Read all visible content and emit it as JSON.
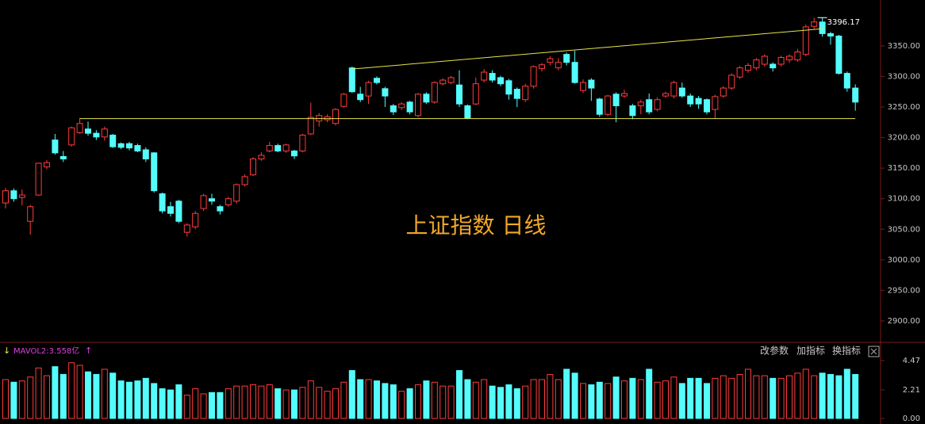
{
  "chart_data": [
    {
      "type": "candlestick",
      "title": "上证指数 日线",
      "open": [
        3093,
        3113,
        3102,
        3063,
        3106,
        3152,
        3196,
        3169,
        3188,
        3208,
        3214,
        3207,
        3201,
        3204,
        3190,
        3190,
        3187,
        3180,
        3175,
        3108,
        3087,
        3096,
        3045,
        3054,
        3084,
        3100,
        3087,
        3090,
        3096,
        3123,
        3139,
        3165,
        3178,
        3187,
        3178,
        3178,
        3178,
        3206,
        3227,
        3229,
        3223,
        3251,
        3314,
        3271,
        3268,
        3297,
        3280,
        3252,
        3249,
        3258,
        3236,
        3271,
        3258,
        3288,
        3290,
        3286,
        3252,
        3255,
        3294,
        3305,
        3298,
        3293,
        3279,
        3262,
        3284,
        3313,
        3323,
        3314,
        3336,
        3323,
        3277,
        3294,
        3263,
        3238,
        3271,
        3268,
        3252,
        3252,
        3262,
        3246,
        3268,
        3268,
        3281,
        3268,
        3264,
        3262,
        3246,
        3268,
        3281,
        3299,
        3310,
        3314,
        3320,
        3320,
        3320,
        3327,
        3327,
        3336,
        3382,
        3389,
        3370,
        3366,
        3305,
        3281
      ],
      "high": [
        3118,
        3117,
        3115,
        3090,
        3159,
        3163,
        3206,
        3178,
        3218,
        3232,
        3226,
        3212,
        3218,
        3206,
        3192,
        3193,
        3190,
        3184,
        3176,
        3110,
        3095,
        3098,
        3060,
        3080,
        3108,
        3108,
        3090,
        3103,
        3125,
        3140,
        3168,
        3176,
        3193,
        3190,
        3190,
        3180,
        3206,
        3257,
        3240,
        3238,
        3248,
        3273,
        3316,
        3283,
        3293,
        3300,
        3283,
        3255,
        3258,
        3260,
        3273,
        3274,
        3292,
        3297,
        3301,
        3310,
        3254,
        3298,
        3312,
        3310,
        3301,
        3296,
        3282,
        3288,
        3318,
        3322,
        3333,
        3330,
        3339,
        3342,
        3295,
        3297,
        3265,
        3270,
        3274,
        3278,
        3255,
        3262,
        3272,
        3266,
        3275,
        3293,
        3290,
        3272,
        3268,
        3264,
        3270,
        3284,
        3305,
        3317,
        3322,
        3330,
        3336,
        3323,
        3334,
        3336,
        3345,
        3385,
        3396,
        3396.17,
        3373,
        3368,
        3308,
        3287
      ],
      "low": [
        3084,
        3095,
        3089,
        3041,
        3105,
        3148,
        3172,
        3160,
        3185,
        3206,
        3203,
        3196,
        3195,
        3183,
        3181,
        3179,
        3176,
        3160,
        3110,
        3076,
        3071,
        3060,
        3038,
        3050,
        3080,
        3090,
        3074,
        3087,
        3092,
        3120,
        3137,
        3162,
        3176,
        3176,
        3175,
        3165,
        3176,
        3204,
        3218,
        3225,
        3220,
        3249,
        3273,
        3258,
        3255,
        3287,
        3250,
        3237,
        3245,
        3238,
        3233,
        3255,
        3255,
        3285,
        3287,
        3250,
        3230,
        3253,
        3290,
        3290,
        3284,
        3262,
        3250,
        3258,
        3280,
        3308,
        3318,
        3310,
        3318,
        3288,
        3273,
        3260,
        3234,
        3235,
        3225,
        3265,
        3230,
        3238,
        3238,
        3243,
        3265,
        3264,
        3265,
        3250,
        3247,
        3238,
        3231,
        3265,
        3278,
        3296,
        3306,
        3310,
        3316,
        3308,
        3316,
        3322,
        3324,
        3333,
        3378,
        3365,
        3352,
        3303,
        3275,
        3244
      ],
      "close": [
        3113,
        3100,
        3106,
        3087,
        3158,
        3159,
        3175,
        3165,
        3216,
        3223,
        3207,
        3201,
        3214,
        3185,
        3184,
        3183,
        3178,
        3165,
        3113,
        3080,
        3076,
        3063,
        3057,
        3076,
        3105,
        3096,
        3080,
        3100,
        3123,
        3136,
        3165,
        3171,
        3187,
        3178,
        3188,
        3170,
        3204,
        3233,
        3236,
        3234,
        3246,
        3271,
        3275,
        3262,
        3290,
        3290,
        3268,
        3242,
        3255,
        3242,
        3271,
        3258,
        3290,
        3294,
        3298,
        3255,
        3232,
        3288,
        3307,
        3294,
        3288,
        3271,
        3264,
        3284,
        3316,
        3319,
        3329,
        3323,
        3323,
        3290,
        3290,
        3281,
        3238,
        3268,
        3252,
        3272,
        3236,
        3258,
        3242,
        3262,
        3272,
        3290,
        3268,
        3255,
        3255,
        3242,
        3267,
        3281,
        3302,
        3314,
        3318,
        3327,
        3333,
        3314,
        3331,
        3333,
        3340,
        3381,
        3389,
        3370,
        3366,
        3305,
        3281,
        3258
      ],
      "up_color": "#ff3c3c",
      "down_color": "#54fcfc",
      "ylim": [
        2865,
        3425
      ],
      "yticks": [
        {
          "value": 2900,
          "label": "2900.00"
        },
        {
          "value": 2950,
          "label": "2950.00"
        },
        {
          "value": 3000,
          "label": "3000.00"
        },
        {
          "value": 3050,
          "label": "3050.00"
        },
        {
          "value": 3100,
          "label": "3100.00"
        },
        {
          "value": 3150,
          "label": "3150.00"
        },
        {
          "value": 3200,
          "label": "3200.00"
        },
        {
          "value": 3250,
          "label": "3250.00"
        },
        {
          "value": 3300,
          "label": "3300.00"
        },
        {
          "value": 3350,
          "label": "3350.00"
        }
      ],
      "grid": false,
      "trendlines": [
        {
          "start": 42,
          "end": 99,
          "values": [
            3312,
            3378
          ]
        },
        {
          "start": 9,
          "end": 103,
          "values": [
            3231,
            3231
          ]
        }
      ],
      "trendline_color": "#e6e64a",
      "annotation_index": 99
    },
    {
      "type": "bar",
      "label": "MAVOL2:3.558亿",
      "prefix": "↓",
      "suffix": "↑",
      "values": [
        3.0,
        2.8,
        2.9,
        3.2,
        3.9,
        3.3,
        4.0,
        3.4,
        4.3,
        4.1,
        3.6,
        3.4,
        3.8,
        3.5,
        2.9,
        2.8,
        2.9,
        3.1,
        2.7,
        2.3,
        2.2,
        2.6,
        1.8,
        2.3,
        1.9,
        2.0,
        2.0,
        2.3,
        2.5,
        2.5,
        2.6,
        2.5,
        2.6,
        2.3,
        2.2,
        2.2,
        2.4,
        2.9,
        2.4,
        2.1,
        2.3,
        2.8,
        3.7,
        3.0,
        3.0,
        2.9,
        2.7,
        2.6,
        2.1,
        2.3,
        2.6,
        2.9,
        2.8,
        2.5,
        2.5,
        3.7,
        3.0,
        2.8,
        3.0,
        2.5,
        2.4,
        2.6,
        2.3,
        2.5,
        3.0,
        3.0,
        3.4,
        3.0,
        3.8,
        3.5,
        2.7,
        2.6,
        2.8,
        2.7,
        3.2,
        2.9,
        3.1,
        3.0,
        3.8,
        2.8,
        2.9,
        3.2,
        2.7,
        3.1,
        3.1,
        2.7,
        3.1,
        3.3,
        3.1,
        3.4,
        3.8,
        3.3,
        3.3,
        3.1,
        3.1,
        3.3,
        3.5,
        3.8,
        3.3,
        3.5,
        3.4,
        3.3,
        3.8,
        3.4
      ],
      "ylim": [
        0,
        5.08
      ],
      "yticks": [
        {
          "value": 0,
          "label": "0.00"
        },
        2.21,
        4.47
      ]
    }
  ],
  "toolbar": [
    "改参数",
    "加指标",
    "换指标"
  ]
}
